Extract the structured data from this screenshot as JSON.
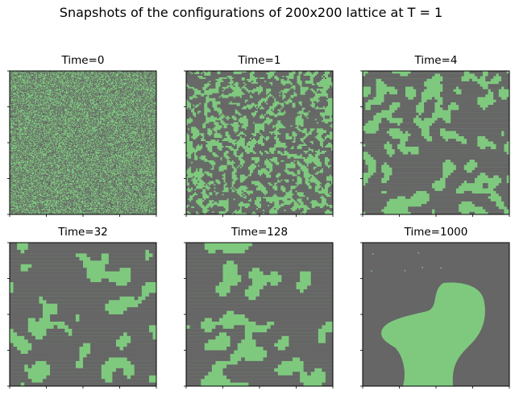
{
  "figure": {
    "title": "Snapshots of the configurations of 200x200 lattice at T = 1"
  },
  "colors": {
    "spin_up": "#7fc97f",
    "spin_down": "#666666",
    "frame": "#000000"
  },
  "chart_data": [
    {
      "type": "heatmap",
      "title": "Time=0",
      "lattice_size": [
        200,
        200
      ],
      "temperature": 1,
      "time": 0,
      "values": [
        "spin_up",
        "spin_down"
      ],
      "pattern": "random uncorrelated spins, fine grain",
      "x_ticks": [
        0,
        50,
        100,
        150,
        200
      ],
      "y_ticks": [
        0,
        50,
        100,
        150,
        200
      ],
      "tick_labels_shown": false
    },
    {
      "type": "heatmap",
      "title": "Time=1",
      "lattice_size": [
        200,
        200
      ],
      "temperature": 1,
      "time": 1,
      "values": [
        "spin_up",
        "spin_down"
      ],
      "pattern": "small clusters",
      "x_ticks": [
        0,
        50,
        100,
        150,
        200
      ],
      "y_ticks": [
        0,
        50,
        100,
        150,
        200
      ],
      "tick_labels_shown": false
    },
    {
      "type": "heatmap",
      "title": "Time=4",
      "lattice_size": [
        200,
        200
      ],
      "temperature": 1,
      "time": 4,
      "values": [
        "spin_up",
        "spin_down"
      ],
      "pattern": "growing domains",
      "x_ticks": [
        0,
        50,
        100,
        150,
        200
      ],
      "y_ticks": [
        0,
        50,
        100,
        150,
        200
      ],
      "tick_labels_shown": false
    },
    {
      "type": "heatmap",
      "title": "Time=32",
      "lattice_size": [
        200,
        200
      ],
      "temperature": 1,
      "time": 32,
      "values": [
        "spin_up",
        "spin_down"
      ],
      "pattern": "coarsened labyrinth domains",
      "x_ticks": [
        0,
        50,
        100,
        150,
        200
      ],
      "y_ticks": [
        0,
        50,
        100,
        150,
        200
      ],
      "tick_labels_shown": false
    },
    {
      "type": "heatmap",
      "title": "Time=128",
      "lattice_size": [
        200,
        200
      ],
      "temperature": 1,
      "time": 128,
      "values": [
        "spin_up",
        "spin_down"
      ],
      "pattern": "large domains",
      "x_ticks": [
        0,
        50,
        100,
        150,
        200
      ],
      "y_ticks": [
        0,
        50,
        100,
        150,
        200
      ],
      "tick_labels_shown": false
    },
    {
      "type": "heatmap",
      "title": "Time=1000",
      "lattice_size": [
        200,
        200
      ],
      "temperature": 1,
      "time": 1000,
      "values": [
        "spin_up",
        "spin_down"
      ],
      "pattern": "single large green domain in grey background",
      "x_ticks": [
        0,
        50,
        100,
        150,
        200
      ],
      "y_ticks": [
        0,
        50,
        100,
        150,
        200
      ],
      "tick_labels_shown": false
    }
  ]
}
